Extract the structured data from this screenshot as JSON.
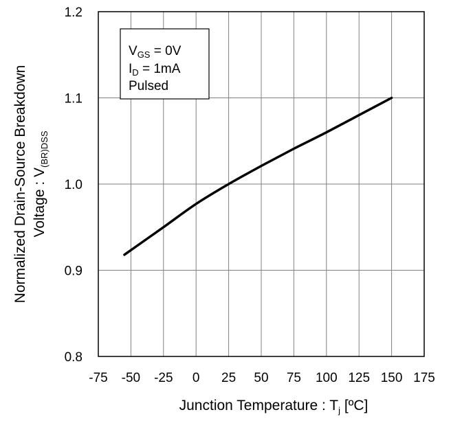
{
  "chart_data": {
    "type": "line",
    "title": "",
    "xlabel": {
      "main": "Junction Temperature : T",
      "sub": "j",
      "unit": " [ºC]"
    },
    "ylabel": {
      "line1": "Normalized Drain-Source Breakdown",
      "line2_main": "Voltage : V",
      "line2_sub": "(BR)DSS"
    },
    "xlim": [
      -75,
      175
    ],
    "ylim": [
      0.8,
      1.2
    ],
    "xticks": [
      -75,
      -50,
      -25,
      0,
      25,
      50,
      75,
      100,
      125,
      150,
      175
    ],
    "xtick_labels": [
      "-75",
      "-50",
      "-25",
      "0",
      "25",
      "50",
      "75",
      "100",
      "125",
      "150",
      "175"
    ],
    "yticks": [
      0.8,
      0.9,
      1.0,
      1.1,
      1.2
    ],
    "ytick_labels": [
      "0.8",
      "0.9",
      "1.0",
      "1.1",
      "1.2"
    ],
    "grid": true,
    "legend_box": {
      "position": "top-left",
      "lines": [
        {
          "main": "V",
          "sub": "GS",
          "rest": " = 0V"
        },
        {
          "main": "I",
          "sub": "D",
          "rest": " = 1mA"
        },
        {
          "main": "Pulsed",
          "sub": "",
          "rest": ""
        }
      ]
    },
    "series": [
      {
        "color": "#000000",
        "x": [
          -55,
          -25,
          0,
          25,
          50,
          75,
          100,
          125,
          150
        ],
        "y": [
          0.918,
          0.95,
          0.977,
          1.0,
          1.021,
          1.041,
          1.06,
          1.08,
          1.1
        ]
      }
    ]
  }
}
